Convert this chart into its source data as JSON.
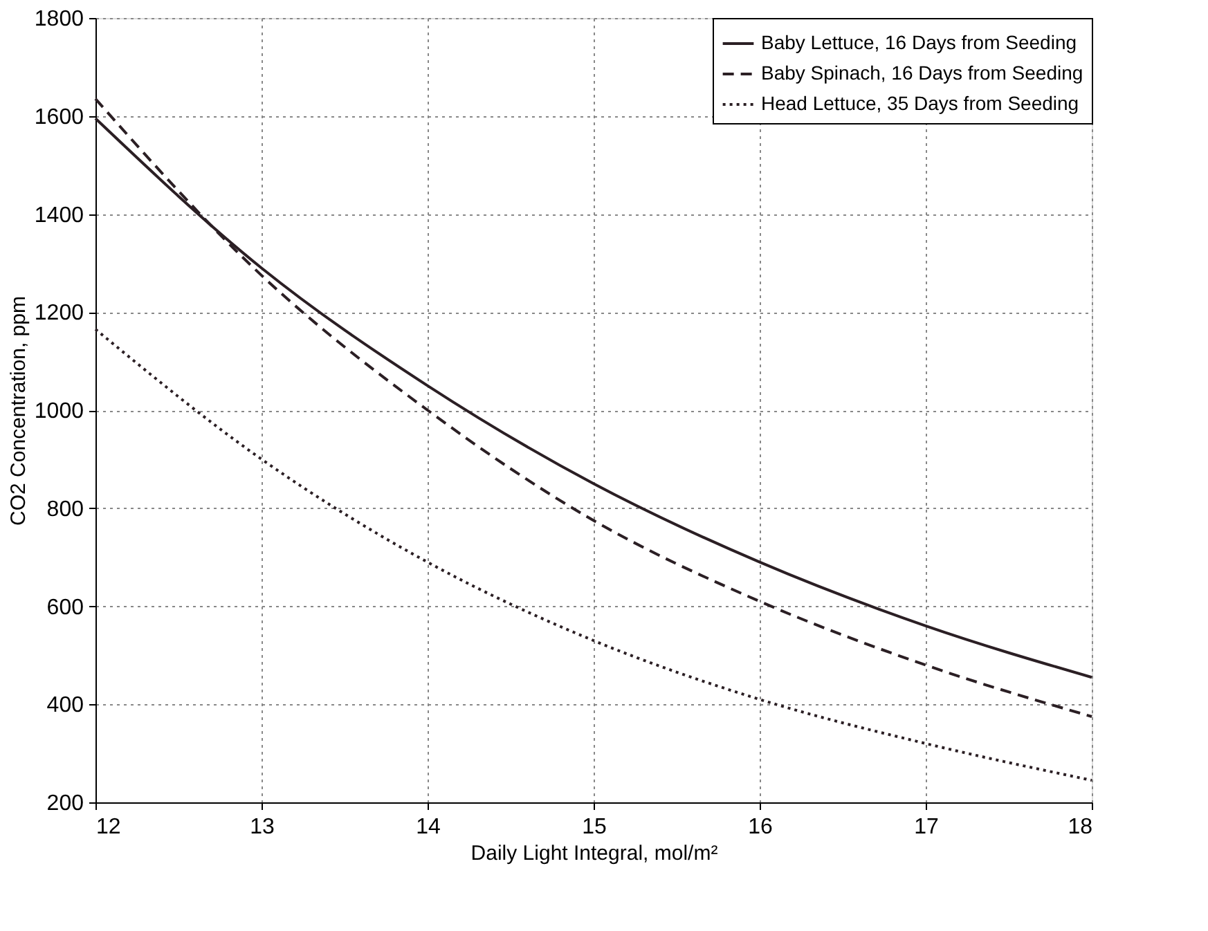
{
  "chart_data": {
    "type": "line",
    "xlabel": "Daily Light Integral, mol/m²",
    "ylabel": "CO2 Concentration, ppm",
    "x": [
      12,
      13,
      14,
      15,
      16,
      17,
      18
    ],
    "series": [
      {
        "name": "Baby Lettuce, 16 Days from Seeding",
        "color": "#2b1f24",
        "line_style": "solid",
        "values": [
          1595,
          1290,
          1050,
          850,
          690,
          560,
          455
        ]
      },
      {
        "name": "Baby Spinach, 16 Days from Seeding",
        "color": "#2b1f24",
        "line_style": "dashed",
        "values": [
          1635,
          1275,
          1000,
          775,
          610,
          480,
          375
        ]
      },
      {
        "name": "Head Lettuce, 35 Days from Seeding",
        "color": "#2b1f24",
        "line_style": "dotted",
        "values": [
          1165,
          900,
          690,
          530,
          410,
          320,
          245
        ]
      }
    ],
    "xlim": [
      12,
      18
    ],
    "xticks": [
      12,
      13,
      14,
      15,
      16,
      17,
      18
    ],
    "ylim": [
      200,
      1800
    ],
    "yticks": [
      200,
      400,
      600,
      800,
      1000,
      1200,
      1400,
      1600,
      1800
    ],
    "grid": true,
    "legend": "top right",
    "marker": "none"
  }
}
